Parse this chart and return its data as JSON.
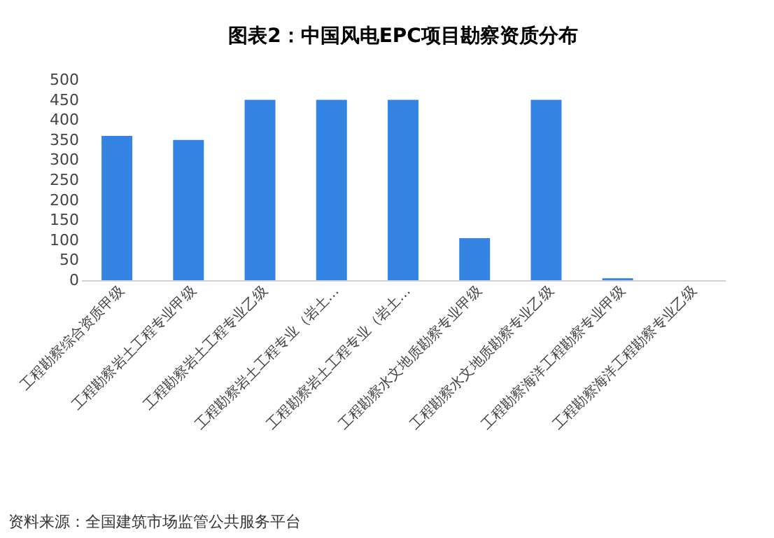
{
  "chart_data": {
    "type": "bar",
    "title": "图表2：中国风电EPC项目勘察资质分布",
    "categories": [
      "工程勘察综合资质甲级",
      "工程勘察岩土工程专业甲级",
      "工程勘察岩土工程专业乙级",
      "工程勘察岩土工程专业（岩土…",
      "工程勘察岩土工程专业（岩土…",
      "工程勘察水文地质勘察专业甲级",
      "工程勘察水文地质勘察专业乙级",
      "工程勘察海洋工程勘察专业甲级",
      "工程勘察海洋工程勘察专业乙级"
    ],
    "values": [
      360,
      350,
      450,
      450,
      450,
      105,
      450,
      5,
      0
    ],
    "color": "#3584e4",
    "ylim": [
      0,
      500
    ],
    "yticks": [
      0,
      50,
      100,
      150,
      200,
      250,
      300,
      350,
      400,
      450,
      500
    ],
    "annotations": [
      "资料来源：全国建筑市场监管公共服务平台"
    ]
  }
}
